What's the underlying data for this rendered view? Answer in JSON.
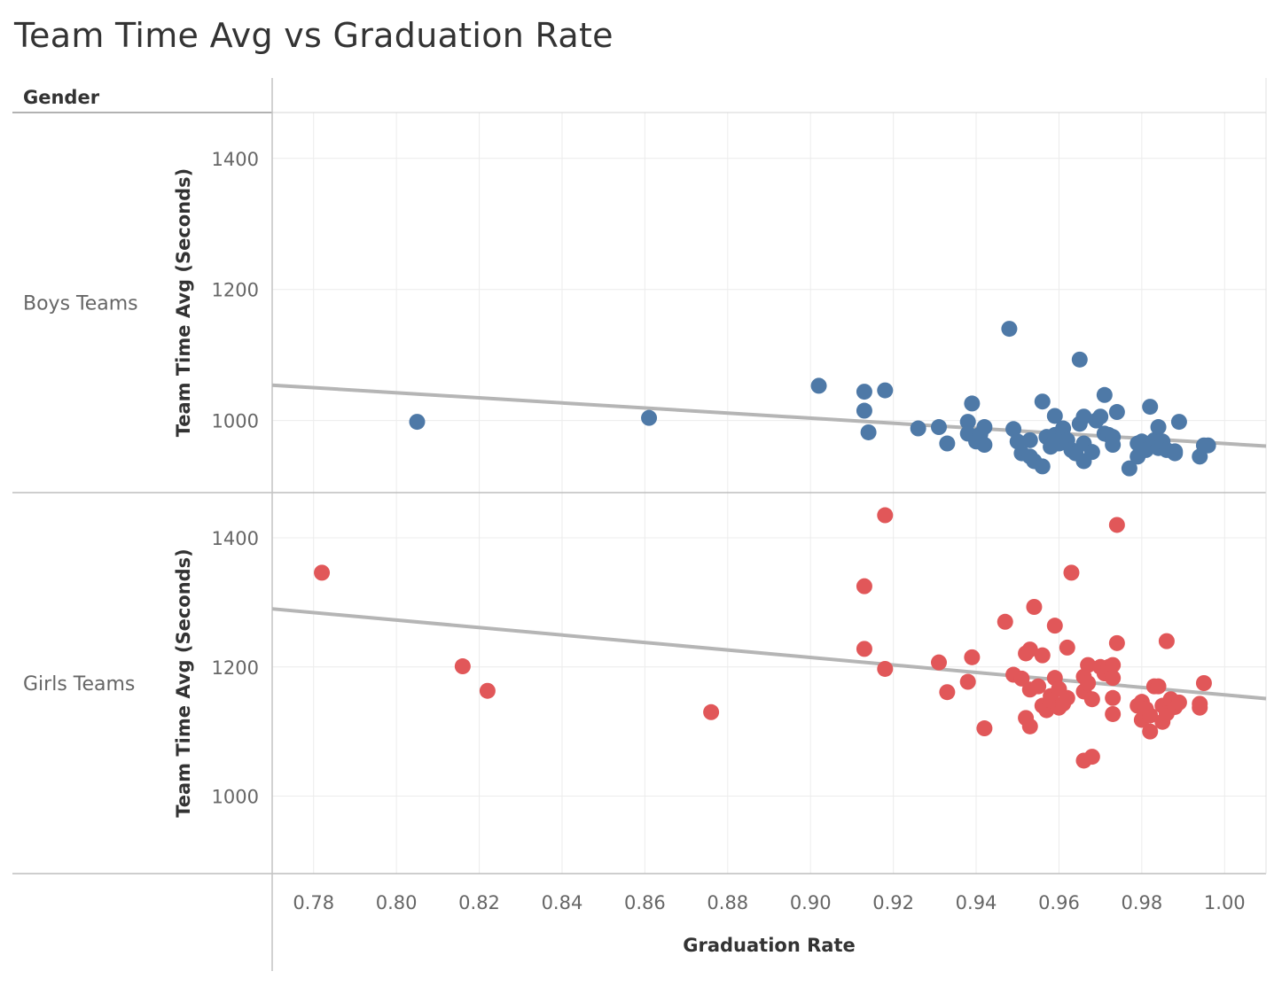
{
  "title": "Team Time Avg vs Graduation Rate",
  "chart_data": {
    "type": "scatter",
    "title": "Team Time Avg vs Graduation Rate",
    "row_header": "Gender",
    "xlabel": "Graduation Rate",
    "xlim": [
      0.77,
      1.01
    ],
    "x_ticks": [
      "0.78",
      "0.80",
      "0.82",
      "0.84",
      "0.86",
      "0.88",
      "0.90",
      "0.92",
      "0.94",
      "0.96",
      "0.98",
      "1.00"
    ],
    "grid": true,
    "colors": {
      "boys": "#4e79a7",
      "girls": "#e15759",
      "trend": "#b5b5b5"
    },
    "panels": [
      {
        "name": "Boys Teams",
        "ylabel": "Team Time Avg (Seconds)",
        "ylim": [
          890,
          1470
        ],
        "y_ticks": [
          "1000",
          "1200",
          "1400"
        ],
        "trend": {
          "x": [
            0.77,
            1.01
          ],
          "y": [
            1054,
            961
          ]
        },
        "points": [
          [
            0.805,
            998
          ],
          [
            0.861,
            1004
          ],
          [
            0.902,
            1053
          ],
          [
            0.913,
            1044
          ],
          [
            0.913,
            1015
          ],
          [
            0.914,
            982
          ],
          [
            0.918,
            1046
          ],
          [
            0.926,
            988
          ],
          [
            0.931,
            990
          ],
          [
            0.933,
            965
          ],
          [
            0.938,
            998
          ],
          [
            0.938,
            980
          ],
          [
            0.939,
            1026
          ],
          [
            0.94,
            968
          ],
          [
            0.941,
            979
          ],
          [
            0.942,
            990
          ],
          [
            0.942,
            963
          ],
          [
            0.948,
            1140
          ],
          [
            0.949,
            987
          ],
          [
            0.95,
            968
          ],
          [
            0.951,
            950
          ],
          [
            0.953,
            970
          ],
          [
            0.953,
            945
          ],
          [
            0.954,
            938
          ],
          [
            0.956,
            1029
          ],
          [
            0.956,
            930
          ],
          [
            0.957,
            975
          ],
          [
            0.958,
            960
          ],
          [
            0.959,
            1007
          ],
          [
            0.959,
            978
          ],
          [
            0.96,
            965
          ],
          [
            0.961,
            988
          ],
          [
            0.961,
            976
          ],
          [
            0.962,
            970
          ],
          [
            0.963,
            955
          ],
          [
            0.964,
            950
          ],
          [
            0.965,
            1093
          ],
          [
            0.965,
            995
          ],
          [
            0.966,
            1006
          ],
          [
            0.966,
            965
          ],
          [
            0.966,
            938
          ],
          [
            0.968,
            952
          ],
          [
            0.969,
            1000
          ],
          [
            0.97,
            1006
          ],
          [
            0.971,
            1039
          ],
          [
            0.971,
            980
          ],
          [
            0.972,
            978
          ],
          [
            0.973,
            975
          ],
          [
            0.973,
            963
          ],
          [
            0.974,
            1013
          ],
          [
            0.977,
            927
          ],
          [
            0.979,
            945
          ],
          [
            0.979,
            965
          ],
          [
            0.98,
            968
          ],
          [
            0.981,
            955
          ],
          [
            0.982,
            1021
          ],
          [
            0.983,
            970
          ],
          [
            0.984,
            958
          ],
          [
            0.984,
            990
          ],
          [
            0.985,
            968
          ],
          [
            0.986,
            955
          ],
          [
            0.988,
            950
          ],
          [
            0.988,
            953
          ],
          [
            0.989,
            998
          ],
          [
            0.994,
            945
          ],
          [
            0.995,
            962
          ],
          [
            0.996,
            962
          ]
        ]
      },
      {
        "name": "Girls Teams",
        "ylabel": "Team Time Avg (Seconds)",
        "ylim": [
          880,
          1470
        ],
        "y_ticks": [
          "1000",
          "1200",
          "1400"
        ],
        "trend": {
          "x": [
            0.77,
            1.01
          ],
          "y": [
            1290,
            1151
          ]
        },
        "points": [
          [
            0.782,
            1346
          ],
          [
            0.816,
            1201
          ],
          [
            0.822,
            1163
          ],
          [
            0.876,
            1130
          ],
          [
            0.913,
            1325
          ],
          [
            0.913,
            1228
          ],
          [
            0.918,
            1435
          ],
          [
            0.918,
            1197
          ],
          [
            0.931,
            1207
          ],
          [
            0.933,
            1161
          ],
          [
            0.938,
            1177
          ],
          [
            0.939,
            1215
          ],
          [
            0.942,
            1105
          ],
          [
            0.947,
            1270
          ],
          [
            0.949,
            1188
          ],
          [
            0.951,
            1182
          ],
          [
            0.952,
            1221
          ],
          [
            0.952,
            1121
          ],
          [
            0.953,
            1227
          ],
          [
            0.953,
            1108
          ],
          [
            0.953,
            1165
          ],
          [
            0.954,
            1293
          ],
          [
            0.955,
            1170
          ],
          [
            0.956,
            1218
          ],
          [
            0.956,
            1140
          ],
          [
            0.957,
            1133
          ],
          [
            0.958,
            1155
          ],
          [
            0.958,
            1148
          ],
          [
            0.959,
            1264
          ],
          [
            0.959,
            1183
          ],
          [
            0.96,
            1137
          ],
          [
            0.96,
            1166
          ],
          [
            0.961,
            1143
          ],
          [
            0.962,
            1230
          ],
          [
            0.962,
            1152
          ],
          [
            0.963,
            1346
          ],
          [
            0.966,
            1055
          ],
          [
            0.966,
            1185
          ],
          [
            0.966,
            1162
          ],
          [
            0.967,
            1203
          ],
          [
            0.967,
            1175
          ],
          [
            0.968,
            1150
          ],
          [
            0.968,
            1061
          ],
          [
            0.97,
            1200
          ],
          [
            0.971,
            1190
          ],
          [
            0.972,
            1200
          ],
          [
            0.973,
            1203
          ],
          [
            0.973,
            1183
          ],
          [
            0.973,
            1152
          ],
          [
            0.973,
            1127
          ],
          [
            0.974,
            1420
          ],
          [
            0.974,
            1237
          ],
          [
            0.979,
            1140
          ],
          [
            0.98,
            1146
          ],
          [
            0.98,
            1118
          ],
          [
            0.981,
            1135
          ],
          [
            0.982,
            1100
          ],
          [
            0.982,
            1125
          ],
          [
            0.983,
            1170
          ],
          [
            0.984,
            1170
          ],
          [
            0.985,
            1140
          ],
          [
            0.985,
            1115
          ],
          [
            0.986,
            1240
          ],
          [
            0.986,
            1128
          ],
          [
            0.987,
            1150
          ],
          [
            0.988,
            1138
          ],
          [
            0.989,
            1145
          ],
          [
            0.994,
            1143
          ],
          [
            0.994,
            1137
          ],
          [
            0.995,
            1175
          ]
        ]
      }
    ]
  }
}
